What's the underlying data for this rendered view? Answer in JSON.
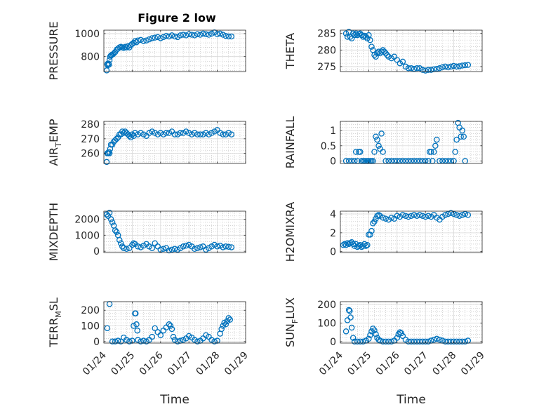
{
  "figure": {
    "title": "Figure 2 low"
  },
  "marker_color": "#0072BD",
  "chart_data": [
    {
      "type": "scatter",
      "ylabel": "PRESSURE",
      "ylim": [
        670,
        1030
      ],
      "yticks": [
        800,
        1000
      ],
      "xlim": [
        "01/24",
        "01/29"
      ],
      "xticks": [
        "01/24",
        "01/25",
        "01/26",
        "01/27",
        "01/28",
        "01/29"
      ],
      "xlabel": "",
      "grid": true,
      "x": [
        0.1,
        0.12,
        0.14,
        0.16,
        0.18,
        0.2,
        0.22,
        0.25,
        0.28,
        0.32,
        0.36,
        0.4,
        0.45,
        0.5,
        0.55,
        0.6,
        0.65,
        0.7,
        0.75,
        0.8,
        0.85,
        0.9,
        0.95,
        1.0,
        1.05,
        1.1,
        1.15,
        1.2,
        1.3,
        1.4,
        1.5,
        1.6,
        1.7,
        1.8,
        1.9,
        2.0,
        2.1,
        2.2,
        2.3,
        2.4,
        2.5,
        2.6,
        2.7,
        2.8,
        2.9,
        3.0,
        3.1,
        3.2,
        3.3,
        3.4,
        3.5,
        3.6,
        3.7,
        3.8,
        3.9,
        4.0,
        4.1,
        4.2,
        4.3,
        4.4,
        4.5
      ],
      "y": [
        680,
        735,
        725,
        740,
        730,
        770,
        800,
        810,
        815,
        820,
        830,
        840,
        860,
        870,
        880,
        885,
        880,
        875,
        885,
        880,
        890,
        880,
        900,
        910,
        920,
        935,
        925,
        940,
        945,
        935,
        940,
        950,
        960,
        965,
        970,
        960,
        970,
        980,
        975,
        985,
        975,
        970,
        985,
        990,
        985,
        995,
        990,
        985,
        995,
        990,
        1000,
        995,
        990,
        1000,
        1010,
        995,
        1000,
        990,
        980,
        975,
        975
      ]
    },
    {
      "type": "scatter",
      "ylabel": "THETA",
      "ylim": [
        273.5,
        286
      ],
      "yticks": [
        275,
        280,
        285
      ],
      "xlim": [
        "01/24",
        "01/29"
      ],
      "xticks": [
        "01/24",
        "01/25",
        "01/26",
        "01/27",
        "01/28",
        "01/29"
      ],
      "xlabel": "",
      "grid": true,
      "x": [
        0.2,
        0.25,
        0.3,
        0.35,
        0.4,
        0.45,
        0.5,
        0.55,
        0.6,
        0.65,
        0.7,
        0.75,
        0.8,
        0.85,
        0.9,
        0.95,
        1.0,
        1.05,
        1.1,
        1.15,
        1.2,
        1.25,
        1.3,
        1.35,
        1.4,
        1.45,
        1.5,
        1.55,
        1.6,
        1.65,
        1.7,
        1.8,
        1.9,
        2.0,
        2.1,
        2.2,
        2.3,
        2.4,
        2.5,
        2.6,
        2.7,
        2.8,
        2.9,
        3.0,
        3.1,
        3.2,
        3.3,
        3.4,
        3.5,
        3.6,
        3.7,
        3.8,
        3.9,
        4.0,
        4.1,
        4.2,
        4.3,
        4.4,
        4.5
      ],
      "y": [
        285,
        284,
        285.5,
        284,
        283.5,
        285,
        284.5,
        285,
        284.5,
        284.8,
        285,
        284.5,
        284,
        284.3,
        284,
        283.5,
        284.5,
        283,
        281,
        280,
        278.5,
        278,
        279,
        279.5,
        279,
        279.5,
        280,
        279.5,
        279,
        278.5,
        278,
        277.5,
        278,
        277,
        276,
        276.5,
        275,
        274.5,
        274.5,
        274.3,
        274.5,
        274.5,
        274,
        273.8,
        274,
        274,
        274.2,
        274.3,
        274.5,
        274.8,
        275,
        274.8,
        275,
        275.2,
        275,
        275.1,
        275.3,
        275.4,
        275.5
      ]
    },
    {
      "type": "scatter",
      "ylabel": "AIR",
      "ylabel_sub": "T",
      "ylabel_rest": "EMP",
      "ylim": [
        253,
        282
      ],
      "yticks": [
        260,
        270,
        280
      ],
      "xlim": [
        "01/24",
        "01/29"
      ],
      "xticks": [
        "01/24",
        "01/25",
        "01/26",
        "01/27",
        "01/28",
        "01/29"
      ],
      "xlabel": "",
      "grid": true,
      "x": [
        0.1,
        0.12,
        0.15,
        0.18,
        0.2,
        0.22,
        0.25,
        0.3,
        0.35,
        0.4,
        0.45,
        0.5,
        0.55,
        0.6,
        0.65,
        0.7,
        0.75,
        0.8,
        0.85,
        0.9,
        0.95,
        1.0,
        1.05,
        1.1,
        1.2,
        1.3,
        1.4,
        1.5,
        1.6,
        1.7,
        1.8,
        1.9,
        2.0,
        2.1,
        2.2,
        2.3,
        2.4,
        2.5,
        2.6,
        2.7,
        2.8,
        2.9,
        3.0,
        3.1,
        3.2,
        3.3,
        3.4,
        3.5,
        3.6,
        3.7,
        3.8,
        3.9,
        4.0,
        4.1,
        4.2,
        4.3,
        4.4,
        4.5
      ],
      "y": [
        254,
        260,
        260,
        261,
        260,
        263,
        266,
        266,
        268,
        269,
        270,
        271,
        273,
        273,
        275,
        274,
        275,
        274,
        273,
        272,
        271,
        273,
        272,
        274,
        273,
        274,
        273,
        272,
        274,
        275,
        274,
        273,
        274,
        273,
        274,
        274,
        275,
        273,
        273,
        274,
        274,
        275,
        274,
        273,
        274,
        273,
        273,
        273,
        274,
        273,
        274,
        275,
        276,
        274,
        273,
        273,
        274,
        273
      ]
    },
    {
      "type": "scatter",
      "ylabel": "RAINFALL",
      "ylim": [
        -0.08,
        1.3
      ],
      "yticks": [
        0,
        0.5,
        1
      ],
      "xlim": [
        "01/24",
        "01/29"
      ],
      "xticks": [
        "01/24",
        "01/25",
        "01/26",
        "01/27",
        "01/28",
        "01/29"
      ],
      "xlabel": "",
      "grid": true,
      "x": [
        0.2,
        0.3,
        0.4,
        0.5,
        0.55,
        0.6,
        0.65,
        0.7,
        0.75,
        0.8,
        0.85,
        0.9,
        0.95,
        1.0,
        1.05,
        1.1,
        1.15,
        1.2,
        1.25,
        1.3,
        1.35,
        1.4,
        1.45,
        1.5,
        1.6,
        1.7,
        1.8,
        1.9,
        2.0,
        2.1,
        2.2,
        2.3,
        2.4,
        2.5,
        2.6,
        2.7,
        2.8,
        2.9,
        3.0,
        3.1,
        3.15,
        3.2,
        3.25,
        3.3,
        3.35,
        3.4,
        3.5,
        3.6,
        3.7,
        3.8,
        3.9,
        4.0,
        4.05,
        4.1,
        4.15,
        4.2,
        4.25,
        4.3,
        4.35,
        4.4
      ],
      "y": [
        0,
        0,
        0,
        0,
        0.3,
        0,
        0.3,
        0.3,
        0,
        0,
        0,
        0,
        0,
        0,
        0,
        0,
        0,
        0.3,
        0.8,
        0.7,
        0.5,
        0.4,
        0.9,
        0.3,
        0,
        0,
        0,
        0,
        0,
        0,
        0,
        0,
        0,
        0,
        0,
        0,
        0,
        0,
        0,
        0,
        0.3,
        0.3,
        0,
        0.3,
        0.5,
        0.7,
        0,
        0,
        0,
        0,
        0,
        0,
        0.3,
        0.7,
        1.25,
        1.1,
        0.8,
        1.0,
        0.8,
        0
      ]
    },
    {
      "type": "scatter",
      "ylabel": "MIXDEPTH",
      "ylim": [
        -80,
        2500
      ],
      "yticks": [
        0,
        1000,
        2000
      ],
      "xlim": [
        "01/24",
        "01/29"
      ],
      "xticks": [
        "01/24",
        "01/25",
        "01/26",
        "01/27",
        "01/28",
        "01/29"
      ],
      "xlabel": "",
      "grid": true,
      "x": [
        0.1,
        0.15,
        0.2,
        0.25,
        0.3,
        0.35,
        0.4,
        0.45,
        0.5,
        0.55,
        0.6,
        0.65,
        0.7,
        0.8,
        0.9,
        1.0,
        1.05,
        1.1,
        1.2,
        1.3,
        1.4,
        1.5,
        1.6,
        1.7,
        1.8,
        1.9,
        2.0,
        2.1,
        2.2,
        2.3,
        2.4,
        2.5,
        2.6,
        2.7,
        2.8,
        2.9,
        3.0,
        3.1,
        3.2,
        3.3,
        3.4,
        3.5,
        3.6,
        3.7,
        3.8,
        3.9,
        4.0,
        4.1,
        4.2,
        4.3,
        4.4,
        4.5
      ],
      "y": [
        2300,
        2200,
        2400,
        2000,
        1800,
        1600,
        1300,
        1200,
        1000,
        700,
        500,
        300,
        200,
        150,
        200,
        400,
        500,
        450,
        300,
        250,
        350,
        450,
        300,
        200,
        500,
        300,
        100,
        150,
        200,
        50,
        100,
        150,
        100,
        200,
        300,
        350,
        400,
        300,
        150,
        200,
        250,
        300,
        100,
        200,
        300,
        400,
        300,
        350,
        250,
        300,
        280,
        250
      ]
    },
    {
      "type": "scatter",
      "ylabel": "H2OMIXRA",
      "ylim": [
        -0.1,
        4.3
      ],
      "yticks": [
        0,
        2,
        4
      ],
      "xlim": [
        "01/24",
        "01/29"
      ],
      "xticks": [
        "01/24",
        "01/25",
        "01/26",
        "01/27",
        "01/28",
        "01/29"
      ],
      "xlabel": "",
      "grid": true,
      "x": [
        0.1,
        0.15,
        0.2,
        0.25,
        0.3,
        0.35,
        0.4,
        0.45,
        0.5,
        0.55,
        0.6,
        0.65,
        0.7,
        0.75,
        0.8,
        0.85,
        0.9,
        0.95,
        1.0,
        1.05,
        1.1,
        1.15,
        1.2,
        1.25,
        1.3,
        1.35,
        1.4,
        1.5,
        1.6,
        1.7,
        1.8,
        1.9,
        2.0,
        2.1,
        2.2,
        2.3,
        2.4,
        2.5,
        2.6,
        2.7,
        2.8,
        2.9,
        3.0,
        3.1,
        3.2,
        3.3,
        3.4,
        3.5,
        3.6,
        3.7,
        3.8,
        3.9,
        4.0,
        4.1,
        4.2,
        4.3,
        4.4,
        4.5
      ],
      "y": [
        0.7,
        0.8,
        0.7,
        0.9,
        0.8,
        0.9,
        1.0,
        0.8,
        0.6,
        0.8,
        0.5,
        0.6,
        0.7,
        0.5,
        0.6,
        0.8,
        0.6,
        0.7,
        1.8,
        1.8,
        2.2,
        3.0,
        3.2,
        3.5,
        3.8,
        3.9,
        3.8,
        3.6,
        3.5,
        3.4,
        3.6,
        3.5,
        3.8,
        3.7,
        3.9,
        3.8,
        3.7,
        3.8,
        3.9,
        3.8,
        3.9,
        3.8,
        3.7,
        3.8,
        3.7,
        3.9,
        3.6,
        3.4,
        3.7,
        3.9,
        4.0,
        4.1,
        4.0,
        3.9,
        3.8,
        3.9,
        4.0,
        3.9
      ]
    },
    {
      "type": "scatter",
      "ylabel": "TERR",
      "ylabel_sub": "M",
      "ylabel_rest": "SL",
      "ylim": [
        -10,
        255
      ],
      "yticks": [
        0,
        100,
        200
      ],
      "xlim": [
        "01/24",
        "01/29"
      ],
      "xticks": [
        "01/24",
        "01/25",
        "01/26",
        "01/27",
        "01/28",
        "01/29"
      ],
      "xlabel": "Time",
      "grid": true,
      "x": [
        0.12,
        0.2,
        0.3,
        0.4,
        0.5,
        0.6,
        0.7,
        0.8,
        0.9,
        1.0,
        1.05,
        1.1,
        1.12,
        1.15,
        1.18,
        1.2,
        1.3,
        1.4,
        1.5,
        1.6,
        1.7,
        1.8,
        1.9,
        2.0,
        2.1,
        2.2,
        2.3,
        2.35,
        2.4,
        2.45,
        2.5,
        2.6,
        2.7,
        2.8,
        2.9,
        3.0,
        3.1,
        3.2,
        3.3,
        3.4,
        3.5,
        3.6,
        3.7,
        3.8,
        3.9,
        4.0,
        4.1,
        4.15,
        4.2,
        4.25,
        4.3,
        4.35,
        4.4,
        4.45
      ],
      "y": [
        85,
        240,
        0,
        0,
        5,
        0,
        25,
        10,
        0,
        5,
        100,
        180,
        180,
        110,
        70,
        10,
        0,
        5,
        0,
        10,
        30,
        85,
        60,
        40,
        70,
        90,
        110,
        100,
        80,
        30,
        10,
        0,
        5,
        10,
        20,
        35,
        25,
        10,
        0,
        5,
        20,
        40,
        30,
        10,
        0,
        5,
        50,
        80,
        100,
        120,
        110,
        130,
        150,
        140
      ]
    },
    {
      "type": "scatter",
      "ylabel": "SUN",
      "ylabel_sub": "F",
      "ylabel_rest": "LUX",
      "ylim": [
        -8,
        215
      ],
      "yticks": [
        0,
        100,
        200
      ],
      "xlim": [
        "01/24",
        "01/29"
      ],
      "xticks": [
        "01/24",
        "01/25",
        "01/26",
        "01/27",
        "01/28",
        "01/29"
      ],
      "xlabel": "Time",
      "grid": true,
      "x": [
        0.2,
        0.25,
        0.3,
        0.33,
        0.36,
        0.4,
        0.45,
        0.5,
        0.6,
        0.7,
        0.8,
        0.9,
        1.0,
        1.05,
        1.1,
        1.15,
        1.2,
        1.25,
        1.3,
        1.35,
        1.4,
        1.5,
        1.6,
        1.7,
        1.8,
        1.9,
        2.0,
        2.05,
        2.1,
        2.15,
        2.2,
        2.3,
        2.4,
        2.5,
        2.6,
        2.7,
        2.8,
        2.9,
        3.0,
        3.1,
        3.2,
        3.3,
        3.4,
        3.5,
        3.6,
        3.7,
        3.8,
        3.9,
        4.0,
        4.1,
        4.2,
        4.3,
        4.4,
        4.5
      ],
      "y": [
        55,
        115,
        170,
        165,
        130,
        75,
        20,
        0,
        0,
        0,
        0,
        5,
        15,
        35,
        55,
        70,
        60,
        40,
        20,
        10,
        5,
        0,
        0,
        0,
        0,
        5,
        20,
        40,
        50,
        45,
        30,
        10,
        0,
        0,
        0,
        0,
        0,
        0,
        0,
        0,
        5,
        10,
        15,
        10,
        5,
        0,
        0,
        0,
        0,
        0,
        0,
        0,
        0,
        5
      ]
    }
  ]
}
